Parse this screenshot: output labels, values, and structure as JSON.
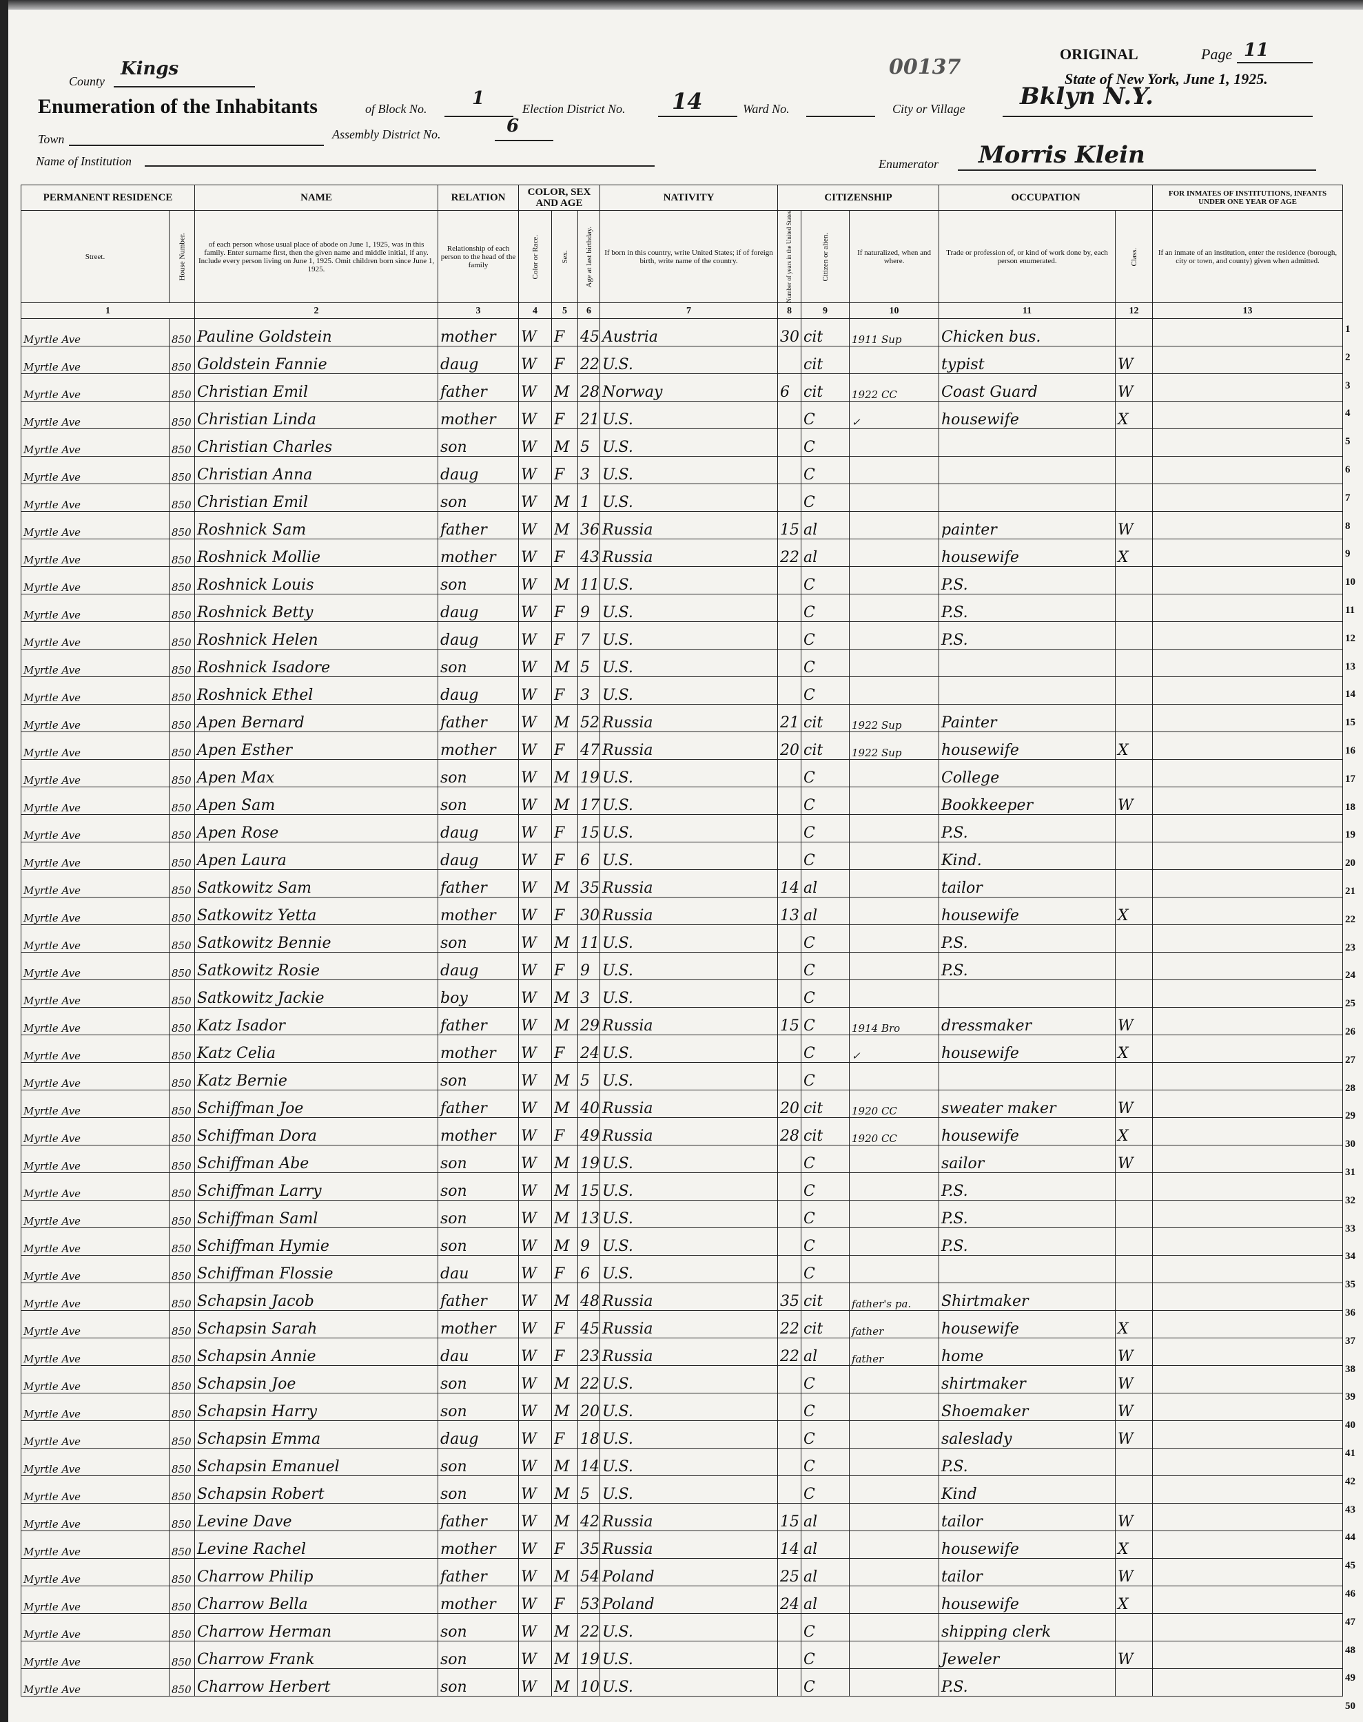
{
  "form": {
    "county_label": "County",
    "county": "Kings",
    "stamp": "00137",
    "original_label": "ORIGINAL",
    "page_label": "Page",
    "page": "11",
    "state_line": "State of New York, June 1, 1925.",
    "title": "Enumeration of the Inhabitants",
    "block_label": "of Block No.",
    "block": "1",
    "election_label": "Election District No.",
    "election": "14",
    "ward_label": "Ward No.",
    "ward": "",
    "city_label": "City or Village",
    "city": "Bklyn N.Y.",
    "town_label": "Town",
    "town": "",
    "assembly_label": "Assembly District No.",
    "assembly": "6",
    "institution_label": "Name of Institution",
    "institution": "",
    "enumerator_label": "Enumerator",
    "enumerator": "Morris Klein"
  },
  "headers": {
    "permanent_residence": "PERMANENT RESIDENCE",
    "street": "Street.",
    "house_number": "House Number.",
    "name": "NAME",
    "name_desc": "of each person whose usual place of abode on June 1, 1925, was in this family. Enter surname first, then the given name and middle initial, if any. Include every person living on June 1, 1925. Omit children born since June 1, 1925.",
    "relation": "RELATION",
    "relation_desc": "Relationship of each person to the head of the family",
    "color_sex_age": "COLOR, SEX AND AGE",
    "color": "Color or Race.",
    "sex": "Sex.",
    "age": "Age at last birthday.",
    "nativity": "NATIVITY",
    "nativity_desc": "If born in this country, write United States; if of foreign birth, write name of the country.",
    "citizenship": "CITIZENSHIP",
    "years": "Number of years in the United States",
    "citizen": "Citizen or alien.",
    "naturalized": "If naturalized, when and where.",
    "occupation": "OCCUPATION",
    "occupation_desc": "Trade or profession of, or kind of work done by, each person enumerated.",
    "class": "Class.",
    "inmates": "FOR INMATES OF INSTITUTIONS, INFANTS UNDER ONE YEAR OF AGE",
    "inmates_desc": "If an inmate of an institution, enter the residence (borough, city or town, and county) given when admitted.",
    "col_numbers": [
      "1",
      "2",
      "3",
      "4",
      "5",
      "6",
      "7",
      "8",
      "9",
      "10",
      "11",
      "12",
      "13"
    ]
  },
  "rows": [
    [
      "Myrtle Ave",
      "850",
      "Pauline Goldstein",
      "mother",
      "W",
      "F",
      "45",
      "Austria",
      "30",
      "cit",
      "1911 Sup",
      "Chicken bus.",
      "",
      "",
      ""
    ],
    [
      "Myrtle Ave",
      "850",
      "Goldstein Fannie",
      "daug",
      "W",
      "F",
      "22",
      "U.S.",
      "",
      "cit",
      "",
      "typist",
      "W",
      ""
    ],
    [
      "Myrtle Ave",
      "850",
      "Christian Emil",
      "father",
      "W",
      "M",
      "28",
      "Norway",
      "6",
      "cit",
      "1922 CC",
      "Coast Guard",
      "W",
      ""
    ],
    [
      "Myrtle Ave",
      "850",
      "Christian Linda",
      "mother",
      "W",
      "F",
      "21",
      "U.S.",
      "",
      "C",
      "✓",
      "housewife",
      "X",
      ""
    ],
    [
      "Myrtle Ave",
      "850",
      "Christian Charles",
      "son",
      "W",
      "M",
      "5",
      "U.S.",
      "",
      "C",
      "",
      "",
      "",
      ""
    ],
    [
      "Myrtle Ave",
      "850",
      "Christian Anna",
      "daug",
      "W",
      "F",
      "3",
      "U.S.",
      "",
      "C",
      "",
      "",
      "",
      ""
    ],
    [
      "Myrtle Ave",
      "850",
      "Christian Emil",
      "son",
      "W",
      "M",
      "1",
      "U.S.",
      "",
      "C",
      "",
      "",
      "",
      ""
    ],
    [
      "Myrtle Ave",
      "850",
      "Roshnick Sam",
      "father",
      "W",
      "M",
      "36",
      "Russia",
      "15",
      "al",
      "",
      "painter",
      "W",
      ""
    ],
    [
      "Myrtle Ave",
      "850",
      "Roshnick Mollie",
      "mother",
      "W",
      "F",
      "43",
      "Russia",
      "22",
      "al",
      "",
      "housewife",
      "X",
      ""
    ],
    [
      "Myrtle Ave",
      "850",
      "Roshnick Louis",
      "son",
      "W",
      "M",
      "11",
      "U.S.",
      "",
      "C",
      "",
      "P.S.",
      "",
      ""
    ],
    [
      "Myrtle Ave",
      "850",
      "Roshnick Betty",
      "daug",
      "W",
      "F",
      "9",
      "U.S.",
      "",
      "C",
      "",
      "P.S.",
      "",
      ""
    ],
    [
      "Myrtle Ave",
      "850",
      "Roshnick Helen",
      "daug",
      "W",
      "F",
      "7",
      "U.S.",
      "",
      "C",
      "",
      "P.S.",
      "",
      ""
    ],
    [
      "Myrtle Ave",
      "850",
      "Roshnick Isadore",
      "son",
      "W",
      "M",
      "5",
      "U.S.",
      "",
      "C",
      "",
      "",
      "",
      ""
    ],
    [
      "Myrtle Ave",
      "850",
      "Roshnick Ethel",
      "daug",
      "W",
      "F",
      "3",
      "U.S.",
      "",
      "C",
      "",
      "",
      "",
      ""
    ],
    [
      "Myrtle Ave",
      "850",
      "Apen Bernard",
      "father",
      "W",
      "M",
      "52",
      "Russia",
      "21",
      "cit",
      "1922 Sup",
      "Painter",
      "",
      ""
    ],
    [
      "Myrtle Ave",
      "850",
      "Apen Esther",
      "mother",
      "W",
      "F",
      "47",
      "Russia",
      "20",
      "cit",
      "1922 Sup",
      "housewife",
      "X",
      ""
    ],
    [
      "Myrtle Ave",
      "850",
      "Apen Max",
      "son",
      "W",
      "M",
      "19",
      "U.S.",
      "",
      "C",
      "",
      "College",
      "",
      ""
    ],
    [
      "Myrtle Ave",
      "850",
      "Apen Sam",
      "son",
      "W",
      "M",
      "17",
      "U.S.",
      "",
      "C",
      "",
      "Bookkeeper",
      "W",
      ""
    ],
    [
      "Myrtle Ave",
      "850",
      "Apen Rose",
      "daug",
      "W",
      "F",
      "15",
      "U.S.",
      "",
      "C",
      "",
      "P.S.",
      "",
      ""
    ],
    [
      "Myrtle Ave",
      "850",
      "Apen Laura",
      "daug",
      "W",
      "F",
      "6",
      "U.S.",
      "",
      "C",
      "",
      "Kind.",
      "",
      ""
    ],
    [
      "Myrtle Ave",
      "850",
      "Satkowitz Sam",
      "father",
      "W",
      "M",
      "35",
      "Russia",
      "14",
      "al",
      "",
      "tailor",
      "",
      ""
    ],
    [
      "Myrtle Ave",
      "850",
      "Satkowitz Yetta",
      "mother",
      "W",
      "F",
      "30",
      "Russia",
      "13",
      "al",
      "",
      "housewife",
      "X",
      ""
    ],
    [
      "Myrtle Ave",
      "850",
      "Satkowitz Bennie",
      "son",
      "W",
      "M",
      "11",
      "U.S.",
      "",
      "C",
      "",
      "P.S.",
      "",
      ""
    ],
    [
      "Myrtle Ave",
      "850",
      "Satkowitz Rosie",
      "daug",
      "W",
      "F",
      "9",
      "U.S.",
      "",
      "C",
      "",
      "P.S.",
      "",
      ""
    ],
    [
      "Myrtle Ave",
      "850",
      "Satkowitz Jackie",
      "boy",
      "W",
      "M",
      "3",
      "U.S.",
      "",
      "C",
      "",
      "",
      "",
      ""
    ],
    [
      "Myrtle Ave",
      "850",
      "Katz Isador",
      "father",
      "W",
      "M",
      "29",
      "Russia",
      "15",
      "C",
      "1914 Bro",
      "dressmaker",
      "W",
      ""
    ],
    [
      "Myrtle Ave",
      "850",
      "Katz Celia",
      "mother",
      "W",
      "F",
      "24",
      "U.S.",
      "",
      "C",
      "✓",
      "housewife",
      "X",
      ""
    ],
    [
      "Myrtle Ave",
      "850",
      "Katz Bernie",
      "son",
      "W",
      "M",
      "5",
      "U.S.",
      "",
      "C",
      "",
      "",
      "",
      ""
    ],
    [
      "Myrtle Ave",
      "850",
      "Schiffman Joe",
      "father",
      "W",
      "M",
      "40",
      "Russia",
      "20",
      "cit",
      "1920 CC",
      "sweater maker",
      "W",
      ""
    ],
    [
      "Myrtle Ave",
      "850",
      "Schiffman Dora",
      "mother",
      "W",
      "F",
      "49",
      "Russia",
      "28",
      "cit",
      "1920 CC",
      "housewife",
      "X",
      ""
    ],
    [
      "Myrtle Ave",
      "850",
      "Schiffman Abe",
      "son",
      "W",
      "M",
      "19",
      "U.S.",
      "",
      "C",
      "",
      "sailor",
      "W",
      ""
    ],
    [
      "Myrtle Ave",
      "850",
      "Schiffman Larry",
      "son",
      "W",
      "M",
      "15",
      "U.S.",
      "",
      "C",
      "",
      "P.S.",
      "",
      ""
    ],
    [
      "Myrtle Ave",
      "850",
      "Schiffman Saml",
      "son",
      "W",
      "M",
      "13",
      "U.S.",
      "",
      "C",
      "",
      "P.S.",
      "",
      ""
    ],
    [
      "Myrtle Ave",
      "850",
      "Schiffman Hymie",
      "son",
      "W",
      "M",
      "9",
      "U.S.",
      "",
      "C",
      "",
      "P.S.",
      "",
      ""
    ],
    [
      "Myrtle Ave",
      "850",
      "Schiffman Flossie",
      "dau",
      "W",
      "F",
      "6",
      "U.S.",
      "",
      "C",
      "",
      "",
      "",
      ""
    ],
    [
      "Myrtle Ave",
      "850",
      "Schapsin Jacob",
      "father",
      "W",
      "M",
      "48",
      "Russia",
      "35",
      "cit",
      "father's pa.",
      "Shirtmaker",
      "",
      ""
    ],
    [
      "Myrtle Ave",
      "850",
      "Schapsin Sarah",
      "mother",
      "W",
      "F",
      "45",
      "Russia",
      "22",
      "cit",
      "father",
      "housewife",
      "X",
      ""
    ],
    [
      "Myrtle Ave",
      "850",
      "Schapsin Annie",
      "dau",
      "W",
      "F",
      "23",
      "Russia",
      "22",
      "al",
      "father",
      "home",
      "W",
      ""
    ],
    [
      "Myrtle Ave",
      "850",
      "Schapsin Joe",
      "son",
      "W",
      "M",
      "22",
      "U.S.",
      "",
      "C",
      "",
      "shirtmaker",
      "W",
      ""
    ],
    [
      "Myrtle Ave",
      "850",
      "Schapsin Harry",
      "son",
      "W",
      "M",
      "20",
      "U.S.",
      "",
      "C",
      "",
      "Shoemaker",
      "W",
      ""
    ],
    [
      "Myrtle Ave",
      "850",
      "Schapsin Emma",
      "daug",
      "W",
      "F",
      "18",
      "U.S.",
      "",
      "C",
      "",
      "saleslady",
      "W",
      ""
    ],
    [
      "Myrtle Ave",
      "850",
      "Schapsin Emanuel",
      "son",
      "W",
      "M",
      "14",
      "U.S.",
      "",
      "C",
      "",
      "P.S.",
      "",
      ""
    ],
    [
      "Myrtle Ave",
      "850",
      "Schapsin Robert",
      "son",
      "W",
      "M",
      "5",
      "U.S.",
      "",
      "C",
      "",
      "Kind",
      "",
      ""
    ],
    [
      "Myrtle Ave",
      "850",
      "Levine Dave",
      "father",
      "W",
      "M",
      "42",
      "Russia",
      "15",
      "al",
      "",
      "tailor",
      "W",
      ""
    ],
    [
      "Myrtle Ave",
      "850",
      "Levine Rachel",
      "mother",
      "W",
      "F",
      "35",
      "Russia",
      "14",
      "al",
      "",
      "housewife",
      "X",
      ""
    ],
    [
      "Myrtle Ave",
      "850",
      "Charrow Philip",
      "father",
      "W",
      "M",
      "54",
      "Poland",
      "25",
      "al",
      "",
      "tailor",
      "W",
      ""
    ],
    [
      "Myrtle Ave",
      "850",
      "Charrow Bella",
      "mother",
      "W",
      "F",
      "53",
      "Poland",
      "24",
      "al",
      "",
      "housewife",
      "X",
      ""
    ],
    [
      "Myrtle Ave",
      "850",
      "Charrow Herman",
      "son",
      "W",
      "M",
      "22",
      "U.S.",
      "",
      "C",
      "",
      "shipping clerk",
      "",
      ""
    ],
    [
      "Myrtle Ave",
      "850",
      "Charrow Frank",
      "son",
      "W",
      "M",
      "19",
      "U.S.",
      "",
      "C",
      "",
      "Jeweler",
      "W",
      ""
    ],
    [
      "Myrtle Ave",
      "850",
      "Charrow Herbert",
      "son",
      "W",
      "M",
      "10",
      "U.S.",
      "",
      "C",
      "",
      "P.S.",
      "",
      ""
    ]
  ]
}
